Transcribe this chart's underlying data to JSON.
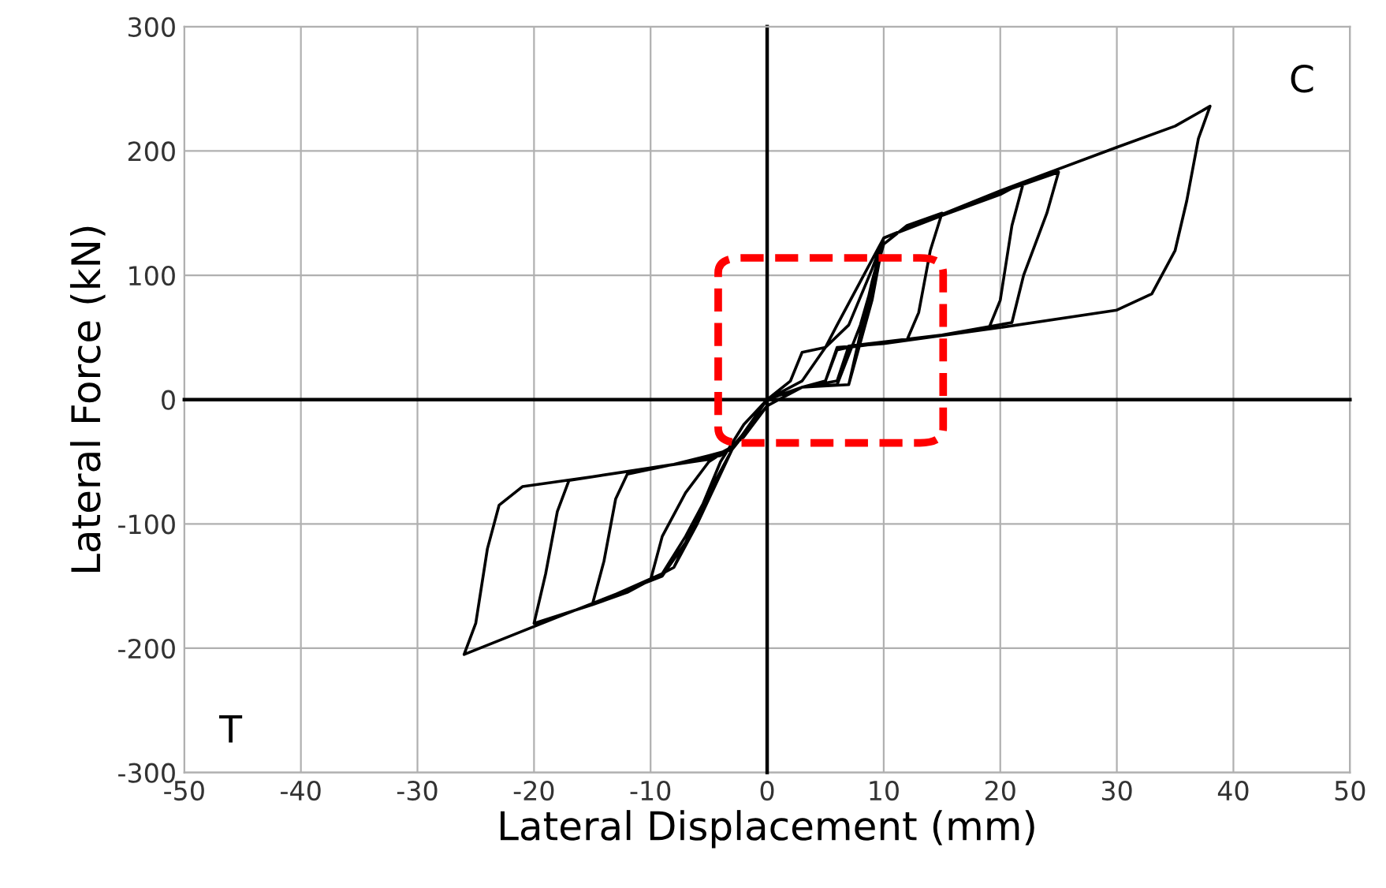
{
  "chart_data": {
    "type": "line",
    "xlabel": "Lateral Displacement (mm)",
    "ylabel": "Lateral Force (kN)",
    "xlim": [
      -50,
      50
    ],
    "xticks": [
      -50,
      -40,
      -30,
      -20,
      -10,
      0,
      10,
      20,
      30,
      40,
      50
    ],
    "ylim": [
      -300,
      300
    ],
    "yticks": [
      -300,
      -200,
      -100,
      0,
      100,
      200,
      300
    ],
    "grid": true,
    "marker": "none",
    "line_style": "solid",
    "annotations": [
      "C",
      "T"
    ],
    "series": [
      {
        "color": "#000000",
        "x": [
          0,
          2,
          3,
          5,
          6,
          8,
          10,
          9,
          7,
          5,
          3,
          0,
          -2,
          -4,
          -6,
          -8,
          -10,
          -9,
          -7,
          -5,
          -3,
          0,
          3,
          6,
          8,
          10,
          12,
          15,
          14,
          13,
          12,
          8,
          6,
          5,
          3,
          0,
          -3,
          -6,
          -8,
          -12,
          -15,
          -14,
          -13,
          -12,
          -8,
          -5,
          -3,
          0,
          3,
          7,
          9,
          10,
          15,
          20,
          22,
          21,
          20,
          19,
          12,
          7,
          6,
          3,
          0,
          -3,
          -7,
          -9,
          -15,
          -20,
          -19,
          -18,
          -17,
          -10,
          -5,
          -3,
          0,
          3,
          7,
          9,
          10,
          18,
          25,
          24,
          22,
          21,
          15,
          7,
          6,
          3,
          0,
          -3,
          -7,
          -9,
          -18,
          -26,
          -25,
          -24,
          -23,
          -21,
          -15,
          -8,
          -4,
          -2,
          0,
          3,
          7,
          9,
          10,
          20,
          30,
          35,
          38,
          37,
          36,
          35,
          33,
          30,
          20,
          10,
          6,
          5,
          3
        ],
        "values": [
          0,
          15,
          38,
          42,
          60,
          95,
          130,
          105,
          60,
          42,
          15,
          0,
          -20,
          -50,
          -95,
          -135,
          -145,
          -110,
          -75,
          -50,
          -38,
          -5,
          10,
          12,
          60,
          125,
          140,
          150,
          120,
          70,
          48,
          44,
          40,
          15,
          10,
          0,
          -40,
          -100,
          -135,
          -155,
          -165,
          -130,
          -80,
          -60,
          -52,
          -45,
          -40,
          -5,
          10,
          12,
          80,
          130,
          148,
          165,
          175,
          140,
          80,
          57,
          48,
          42,
          15,
          10,
          0,
          -40,
          -110,
          -140,
          -165,
          -180,
          -140,
          -90,
          -65,
          -55,
          -48,
          -38,
          -5,
          10,
          12,
          90,
          130,
          160,
          183,
          150,
          100,
          62,
          52,
          43,
          15,
          10,
          0,
          -40,
          -115,
          -142,
          -175,
          -205,
          -180,
          -120,
          -85,
          -70,
          -62,
          -52,
          -45,
          -30,
          -5,
          10,
          12,
          95,
          130,
          168,
          203,
          220,
          236,
          210,
          160,
          120,
          85,
          72,
          58,
          45,
          42,
          15,
          10
        ]
      }
    ]
  }
}
